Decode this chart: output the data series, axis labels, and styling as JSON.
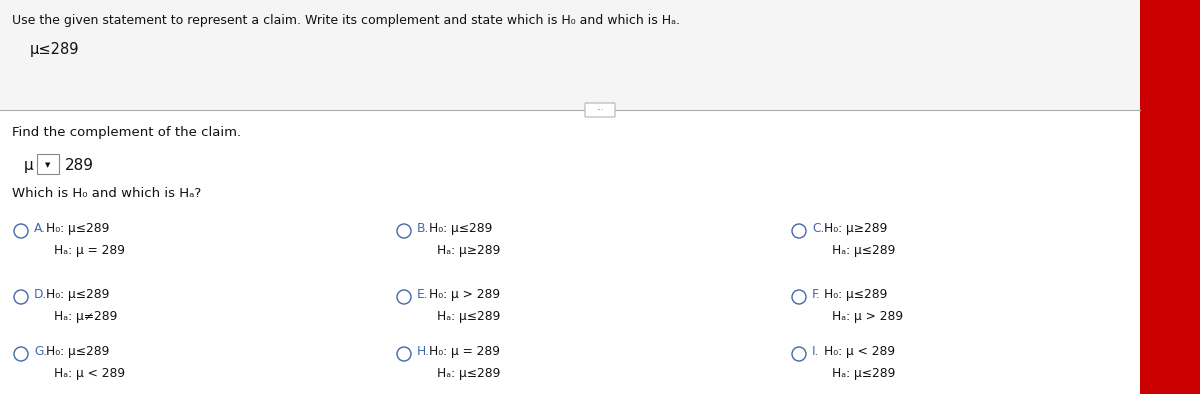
{
  "title": "Use the given statement to represent a claim. Write its complement and state which is H₀ and which is Hₐ.",
  "claim": "μ≤289",
  "complement_label": "Find the complement of the claim.",
  "which_label": "Which is H₀ and which is Hₐ?",
  "white_bg": "#ffffff",
  "circle_color": "#4466aa",
  "text_color": "#222222",
  "dark_text": "#111111",
  "blue_text": "#4466aa",
  "options": [
    {
      "label": "A",
      "h0": "H₀: μ≤289",
      "ha": "Hₐ: μ = 289"
    },
    {
      "label": "B",
      "h0": "H₀: μ≤289",
      "ha": "Hₐ: μ≥289"
    },
    {
      "label": "C",
      "h0": "H₀: μ≥289",
      "ha": "Hₐ: μ≤289"
    },
    {
      "label": "D",
      "h0": "H₀: μ≤289",
      "ha": "Hₐ: μ≠289"
    },
    {
      "label": "E",
      "h0": "H₀: μ > 289",
      "ha": "Hₐ: μ≤289"
    },
    {
      "label": "F",
      "h0": "H₀: μ≤289",
      "ha": "Hₐ: μ > 289"
    },
    {
      "label": "G",
      "h0": "H₀: μ≤289",
      "ha": "Hₐ: μ < 289"
    },
    {
      "label": "H",
      "h0": "H₀: μ = 289",
      "ha": "Hₐ: μ≤289"
    },
    {
      "label": "I",
      "h0": "H₀: μ < 289",
      "ha": "Hₐ: μ≤289"
    }
  ],
  "top_bar_color": "#cc0000",
  "separator_color": "#aaaaaa",
  "light_gray": "#e8e8e8"
}
